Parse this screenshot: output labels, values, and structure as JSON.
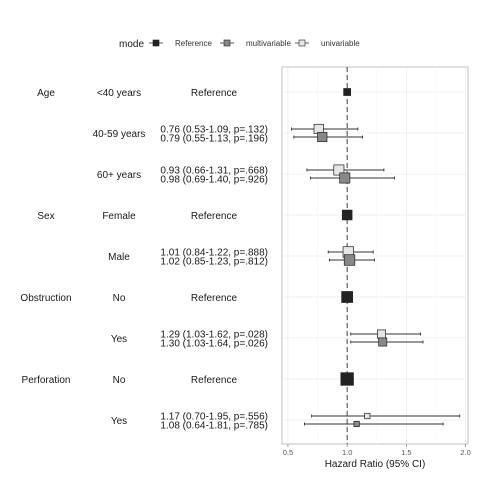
{
  "chart_data": {
    "type": "forest",
    "xlabel": "Hazard Ratio (95% CI)",
    "xlim": [
      0.45,
      2.02
    ],
    "xticks": [
      0.5,
      1.0,
      1.5,
      2.0
    ],
    "xtick_labels": [
      "0.5",
      "1.0",
      "1.5",
      "2.0"
    ],
    "reference_line": 1.0,
    "legend": {
      "title": "mode",
      "placement": "top",
      "entries": [
        {
          "label": "Reference",
          "color": "#222222"
        },
        {
          "label": "multivariable",
          "color": "#888888"
        },
        {
          "label": "univariable",
          "color": "#e6e6e6"
        }
      ]
    },
    "rows": [
      {
        "variable": "Age",
        "level": "<40 years",
        "estimates": [],
        "points": [
          {
            "mode": "Reference",
            "hr": 1.0,
            "lo": 1.0,
            "hi": 1.0,
            "size": 0.5
          }
        ]
      },
      {
        "variable": "",
        "level": "40-59 years",
        "estimates": [
          "0.76 (0.53-1.09, p=.132)",
          "0.79 (0.55-1.13, p=.196)"
        ],
        "points": [
          {
            "mode": "univariable",
            "hr": 0.76,
            "lo": 0.53,
            "hi": 1.09,
            "size": 0.8
          },
          {
            "mode": "multivariable",
            "hr": 0.79,
            "lo": 0.55,
            "hi": 1.13,
            "size": 0.8
          }
        ]
      },
      {
        "variable": "",
        "level": "60+ years",
        "estimates": [
          "0.93 (0.66-1.31, p=.668)",
          "0.98 (0.69-1.40, p=.926)"
        ],
        "points": [
          {
            "mode": "univariable",
            "hr": 0.93,
            "lo": 0.66,
            "hi": 1.31,
            "size": 0.9
          },
          {
            "mode": "multivariable",
            "hr": 0.98,
            "lo": 0.69,
            "hi": 1.4,
            "size": 0.9
          }
        ]
      },
      {
        "variable": "Sex",
        "level": "Female",
        "estimates": [],
        "points": [
          {
            "mode": "Reference",
            "hr": 1.0,
            "lo": 1.0,
            "hi": 1.0,
            "size": 0.85
          }
        ]
      },
      {
        "variable": "",
        "level": "Male",
        "estimates": [
          "1.01 (0.84-1.22, p=.888)",
          "1.02 (0.85-1.23, p=.812)"
        ],
        "points": [
          {
            "mode": "univariable",
            "hr": 1.01,
            "lo": 0.84,
            "hi": 1.22,
            "size": 0.95
          },
          {
            "mode": "multivariable",
            "hr": 1.02,
            "lo": 0.85,
            "hi": 1.23,
            "size": 0.95
          }
        ]
      },
      {
        "variable": "Obstruction",
        "level": "No",
        "estimates": [],
        "points": [
          {
            "mode": "Reference",
            "hr": 1.0,
            "lo": 1.0,
            "hi": 1.0,
            "size": 1.0
          }
        ]
      },
      {
        "variable": "",
        "level": "Yes",
        "estimates": [
          "1.29 (1.03-1.62, p=.028)",
          "1.30 (1.03-1.64, p=.026)"
        ],
        "points": [
          {
            "mode": "univariable",
            "hr": 1.29,
            "lo": 1.03,
            "hi": 1.62,
            "size": 0.65
          },
          {
            "mode": "multivariable",
            "hr": 1.3,
            "lo": 1.03,
            "hi": 1.64,
            "size": 0.65
          }
        ]
      },
      {
        "variable": "Perforation",
        "level": "No",
        "estimates": [],
        "points": [
          {
            "mode": "Reference",
            "hr": 1.0,
            "lo": 1.0,
            "hi": 1.0,
            "size": 1.2
          }
        ]
      },
      {
        "variable": "",
        "level": "Yes",
        "estimates": [
          "1.17 (0.70-1.95, p=.556)",
          "1.08 (0.64-1.81, p=.785)"
        ],
        "points": [
          {
            "mode": "univariable",
            "hr": 1.17,
            "lo": 0.7,
            "hi": 1.95,
            "size": 0.3
          },
          {
            "mode": "multivariable",
            "hr": 1.08,
            "lo": 0.64,
            "hi": 1.81,
            "size": 0.3
          }
        ]
      }
    ],
    "reference_text": "Reference"
  }
}
